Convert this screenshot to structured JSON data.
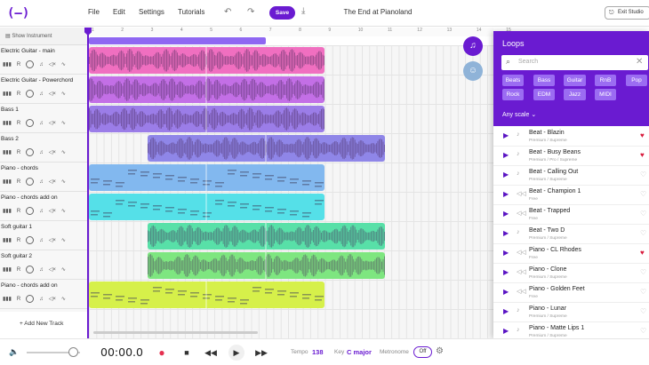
{
  "header": {
    "logo": "(—)",
    "menu": [
      "File",
      "Edit",
      "Settings",
      "Tutorials"
    ],
    "save_label": "Save",
    "project_title": "The End at Pianoland",
    "exit_label": "Exit Studio"
  },
  "sidebar": {
    "show_instrument": "Show Instrument",
    "add_track": "+ Add New Track",
    "tracks": [
      {
        "name": "Electric Guitar - main"
      },
      {
        "name": "Electric Guitar - Powerchord"
      },
      {
        "name": "Bass 1"
      },
      {
        "name": "Bass 2"
      },
      {
        "name": "Piano - chords"
      },
      {
        "name": "Piano - chords add on"
      },
      {
        "name": "Soft guitar 1"
      },
      {
        "name": "Soft guitar 2"
      },
      {
        "name": "Piano - chords add on"
      }
    ],
    "track_controls": {
      "record": "R"
    }
  },
  "ruler": {
    "ticks": [
      "1",
      "2",
      "3",
      "4",
      "5",
      "6",
      "7",
      "8",
      "9",
      "10",
      "11",
      "12",
      "13",
      "14",
      "15"
    ]
  },
  "clips": [
    {
      "color": "#f06fc0",
      "kind": "wave"
    },
    {
      "color": "#c36fe6",
      "kind": "wave"
    },
    {
      "color": "#9b7de8",
      "kind": "wave"
    },
    {
      "color": "#8f86e8",
      "kind": "wave"
    },
    {
      "color": "#82b8ef",
      "kind": "midi"
    },
    {
      "color": "#55e0e8",
      "kind": "midi"
    },
    {
      "color": "#58e0a8",
      "kind": "wave"
    },
    {
      "color": "#7ee680",
      "kind": "wave"
    },
    {
      "color": "#d6f04a",
      "kind": "midi"
    }
  ],
  "loops_panel": {
    "title": "Loops",
    "search_placeholder": "Search",
    "genres": [
      "Beats",
      "Bass",
      "Guitar",
      "RnB",
      "Pop",
      "Rock",
      "EDM",
      "Jazz",
      "MIDI"
    ],
    "scale_label": "Any scale",
    "items": [
      {
        "name": "Beat - Blazin",
        "pack": "Premium / Supreme",
        "fav": true,
        "type": "note"
      },
      {
        "name": "Beat - Busy Beans",
        "pack": "Premium / Pro / Supreme",
        "fav": true,
        "type": "note"
      },
      {
        "name": "Beat - Calling Out",
        "pack": "Premium / Supreme",
        "fav": false,
        "type": "note"
      },
      {
        "name": "Beat - Champion 1",
        "pack": "Free",
        "fav": false,
        "type": "wave"
      },
      {
        "name": "Beat - Trapped",
        "pack": "Free",
        "fav": false,
        "type": "wave"
      },
      {
        "name": "Beat - Two D",
        "pack": "Premium / Supreme",
        "fav": false,
        "type": "note"
      },
      {
        "name": "Piano - CL Rhodes",
        "pack": "Free",
        "fav": true,
        "type": "wave"
      },
      {
        "name": "Piano - Clone",
        "pack": "Premium / Supreme",
        "fav": false,
        "type": "wave"
      },
      {
        "name": "Piano - Golden Feet",
        "pack": "Free",
        "fav": false,
        "type": "wave"
      },
      {
        "name": "Piano - Lunar",
        "pack": "Premium / Supreme",
        "fav": false,
        "type": "note"
      },
      {
        "name": "Piano - Matte Lips 1",
        "pack": "Premium / Supreme",
        "fav": false,
        "type": "note"
      }
    ]
  },
  "transport": {
    "time": "00:00.0",
    "tempo_label": "Tempo",
    "tempo_value": "138",
    "key_label": "Key",
    "key_value": "C major",
    "metronome_label": "Metronome",
    "metronome_state": "Off"
  },
  "colors": {
    "accent": "#6a1bd1",
    "record": "#e53050",
    "fav": "#d81b3c"
  }
}
